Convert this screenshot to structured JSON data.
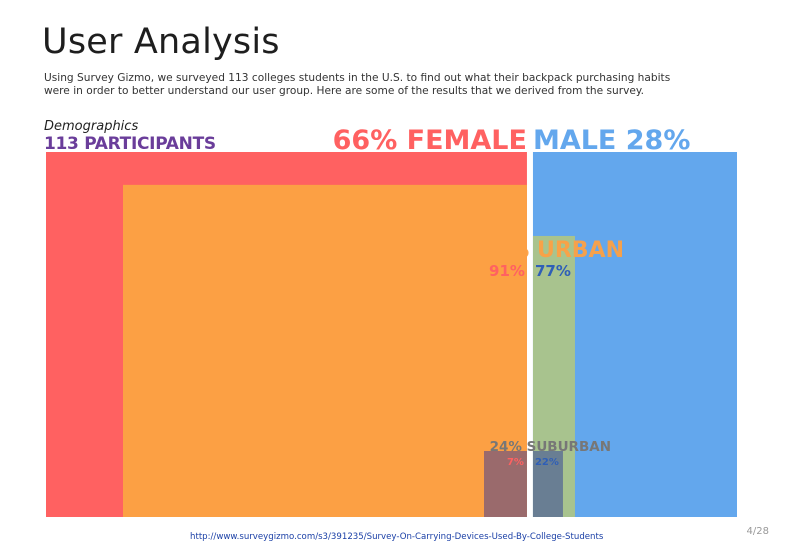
{
  "header": {
    "title": "User Analysis",
    "intro": "Using Survey Gizmo, we surveyed 113 colleges students in the U.S. to find out what their backpack purchasing habits were in order to better understand our user group. Here are some of the results that we derived from the survey.",
    "section_label": "Demographics",
    "participants": "113 PARTICIPANTS"
  },
  "chart_data": {
    "type": "treemap",
    "title": "",
    "colors": {
      "female": "#ff6161",
      "male": "#63a7ed",
      "urban_female": "#fca044",
      "urban_male": "#a8c38e",
      "suburban_female": "#9a6a6c",
      "suburban_male": "#697e93"
    },
    "groups": [
      {
        "name": "FEMALE",
        "label": "66% FEMALE",
        "value": 66,
        "color_key": "female",
        "children": [
          {
            "name": "URBAN",
            "value": 91,
            "label": "91%",
            "color_key": "urban_female"
          },
          {
            "name": "SUBURBAN",
            "value": 7,
            "label": "7%",
            "color_key": "suburban_female"
          }
        ]
      },
      {
        "name": "MALE",
        "label": "MALE 28%",
        "value": 28,
        "color_key": "male",
        "children": [
          {
            "name": "URBAN",
            "value": 77,
            "label": "77%",
            "color_key": "urban_male"
          },
          {
            "name": "SUBURBAN",
            "value": 22,
            "label": "22%",
            "color_key": "suburban_male"
          }
        ]
      }
    ],
    "overall": [
      {
        "name": "URBAN",
        "value": 76,
        "label": "76% URBAN"
      },
      {
        "name": "SUBURBAN",
        "value": 24,
        "label": "24% SUBURBAN"
      }
    ]
  },
  "footer": {
    "source_url": "http://www.surveygizmo.com/s3/391235/Survey-On-Carrying-Devices-Used-By-College-Students",
    "page": "4/28"
  }
}
